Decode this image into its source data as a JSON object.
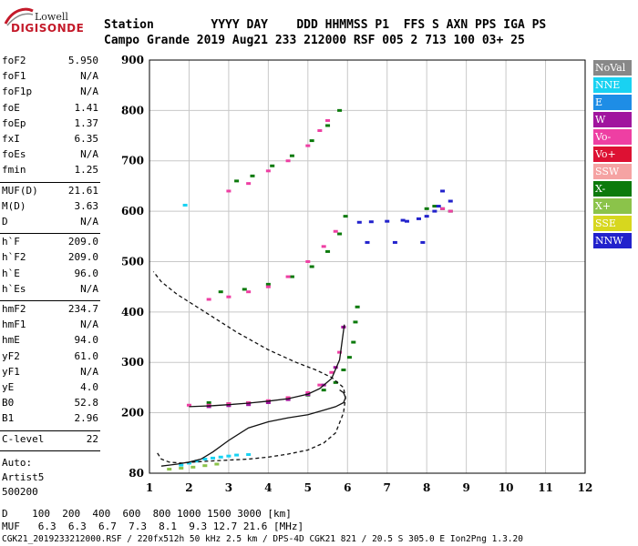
{
  "logo": {
    "top": "Lowell",
    "brand": "DIGISONDE"
  },
  "header": {
    "row1": "Station        YYYY DAY    DDD HHMMSS P1  FFS S AXN PPS IGA PS",
    "row2": "Campo Grande 2019 Aug21 233 212000 RSF 005 2 713 100 03+ 25"
  },
  "scaled": [
    {
      "k": "foF2",
      "v": "5.950"
    },
    {
      "k": "foF1",
      "v": "N/A"
    },
    {
      "k": "foF1p",
      "v": "N/A"
    },
    {
      "k": "foE",
      "v": "1.41"
    },
    {
      "k": "foEp",
      "v": "1.37"
    },
    {
      "k": "fxI",
      "v": "6.35"
    },
    {
      "k": "foEs",
      "v": "N/A"
    },
    {
      "k": "fmin",
      "v": "1.25"
    }
  ],
  "muf": [
    {
      "k": "MUF(D)",
      "v": "21.61"
    },
    {
      "k": "M(D)",
      "v": "3.63"
    },
    {
      "k": "D",
      "v": "N/A"
    }
  ],
  "heights": [
    {
      "k": "h`F",
      "v": "209.0"
    },
    {
      "k": "h`F2",
      "v": "209.0"
    },
    {
      "k": "h`E",
      "v": "96.0"
    },
    {
      "k": "h`Es",
      "v": "N/A"
    }
  ],
  "profile": [
    {
      "k": "hmF2",
      "v": "234.7"
    },
    {
      "k": "hmF1",
      "v": "N/A"
    },
    {
      "k": "hmE",
      "v": "94.0"
    },
    {
      "k": "yF2",
      "v": "61.0"
    },
    {
      "k": "yF1",
      "v": "N/A"
    },
    {
      "k": "yE",
      "v": "4.0"
    },
    {
      "k": "B0",
      "v": "52.8"
    },
    {
      "k": "B1",
      "v": "2.96"
    }
  ],
  "clevel": {
    "k": "C-level",
    "v": "22"
  },
  "auto": [
    "Auto:",
    "Artist5",
    "500200"
  ],
  "legend": [
    {
      "label": "NoVal",
      "color": "#888888"
    },
    {
      "label": "NNE",
      "color": "#19d2f2"
    },
    {
      "label": "E",
      "color": "#1e8de6"
    },
    {
      "label": "W",
      "color": "#a0159e"
    },
    {
      "label": "Vo-",
      "color": "#ee3fa3"
    },
    {
      "label": "Vo+",
      "color": "#dd1133"
    },
    {
      "label": "SSW",
      "color": "#f5a3a3"
    },
    {
      "label": "X-",
      "color": "#0c7a0c"
    },
    {
      "label": "X+",
      "color": "#8bc34a"
    },
    {
      "label": "SSE",
      "color": "#d7d71e"
    },
    {
      "label": "NNW",
      "color": "#2222cc"
    }
  ],
  "footer": {
    "d_row": "D    100  200  400  600  800 1000 1500 3000 [km]",
    "muf_row": "MUF   6.3  6.3  6.7  7.3  8.1  9.3 12.7 21.6 [MHz]",
    "file_row": "CGK21_2019233212000.RSF / 220fx512h 50 kHz 2.5 km / DPS-4D CGK21 821 / 20.5 S 305.0 E Ion2Png 1.3.20"
  },
  "chart_data": {
    "type": "scatter",
    "title": "",
    "xlabel": "",
    "ylabel": "",
    "xlim": [
      1,
      12
    ],
    "ylim": [
      80,
      900
    ],
    "x_ticks": [
      1,
      2,
      3,
      4,
      5,
      6,
      7,
      8,
      9,
      10,
      11,
      12
    ],
    "y_ticks": [
      80,
      200,
      300,
      400,
      500,
      600,
      700,
      800,
      900
    ],
    "grid": true,
    "series": [
      {
        "mode": "X-",
        "color": "#0c7a0c",
        "kind": "points",
        "x": [
          2.5,
          3.0,
          3.5,
          4.0,
          4.5,
          5.0,
          5.4,
          5.7,
          5.9,
          6.05,
          6.15,
          6.2,
          6.25,
          2.8,
          3.4,
          4.0,
          4.6,
          5.1,
          5.5,
          5.8,
          5.95,
          3.2,
          3.6,
          4.1,
          4.6,
          5.1,
          5.5,
          5.8,
          8.0,
          8.2,
          8.4,
          8.6
        ],
        "y": [
          220,
          218,
          220,
          223,
          228,
          235,
          245,
          260,
          285,
          310,
          340,
          380,
          410,
          440,
          445,
          455,
          470,
          490,
          520,
          555,
          590,
          660,
          670,
          690,
          710,
          740,
          770,
          800,
          605,
          610,
          605,
          600
        ]
      },
      {
        "mode": "Vo-",
        "color": "#ee3fa3",
        "kind": "points",
        "x": [
          2.0,
          2.5,
          3.0,
          3.5,
          4.0,
          4.5,
          5.0,
          5.3,
          5.6,
          5.8,
          5.9,
          2.5,
          3.0,
          3.5,
          4.0,
          4.5,
          5.0,
          5.4,
          5.7,
          3.0,
          3.5,
          4.0,
          4.5,
          5.0,
          5.3,
          5.5,
          8.4,
          8.6
        ],
        "y": [
          215,
          215,
          218,
          220,
          224,
          230,
          240,
          255,
          280,
          320,
          370,
          425,
          430,
          440,
          450,
          470,
          500,
          530,
          560,
          640,
          655,
          680,
          700,
          730,
          760,
          780,
          605,
          600
        ]
      },
      {
        "mode": "NNW",
        "color": "#2222cc",
        "kind": "points",
        "x": [
          6.3,
          6.6,
          7.0,
          7.4,
          7.8,
          8.0,
          8.2,
          8.4,
          8.6,
          7.5,
          8.3,
          6.5,
          7.2,
          7.9
        ],
        "y": [
          578,
          579,
          580,
          582,
          585,
          590,
          600,
          640,
          620,
          580,
          610,
          538,
          538,
          538
        ]
      },
      {
        "mode": "NNE",
        "color": "#19d2f2",
        "kind": "points",
        "x": [
          1.8,
          2.0,
          2.2,
          2.4,
          2.6,
          2.8,
          3.0,
          3.2,
          3.5,
          1.9
        ],
        "y": [
          96,
          100,
          104,
          108,
          110,
          112,
          114,
          116,
          117,
          612
        ]
      },
      {
        "mode": "W",
        "color": "#a0159e",
        "kind": "points",
        "x": [
          2.5,
          3.0,
          3.5,
          4.0,
          4.5,
          5.0,
          5.4,
          5.7,
          5.9
        ],
        "y": [
          212,
          214,
          216,
          220,
          226,
          236,
          255,
          290,
          370
        ]
      },
      {
        "mode": "X+",
        "color": "#8bc34a",
        "kind": "points",
        "x": [
          1.5,
          1.8,
          2.1,
          2.4,
          2.7
        ],
        "y": [
          88,
          90,
          92,
          95,
          98
        ]
      },
      {
        "mode": "O-trace",
        "color": "#111111",
        "kind": "line",
        "x": [
          2.0,
          2.3,
          2.6,
          3.0,
          3.5,
          4.0,
          4.5,
          5.0,
          5.3,
          5.6,
          5.8,
          5.92
        ],
        "y": [
          212,
          213,
          214,
          216,
          219,
          223,
          228,
          237,
          248,
          268,
          305,
          375
        ]
      },
      {
        "mode": "profile",
        "color": "#111111",
        "kind": "line",
        "x": [
          1.3,
          1.5,
          1.7,
          2.0,
          2.3,
          2.6,
          3.0,
          3.5,
          4.0,
          4.5,
          5.0,
          5.4,
          5.7,
          5.9,
          5.95,
          5.9,
          5.8
        ],
        "y": [
          94,
          96,
          98,
          102,
          108,
          122,
          145,
          170,
          182,
          190,
          196,
          205,
          212,
          220,
          230,
          240,
          245
        ]
      },
      {
        "mode": "profile-extrapolated",
        "color": "#111111",
        "kind": "dashed",
        "x": [
          1.2,
          1.3,
          1.5,
          1.8,
          2.1,
          2.5,
          3.0,
          3.5,
          4.0,
          4.5,
          5.0,
          5.4,
          5.7,
          5.9,
          5.95,
          5.9,
          5.6,
          5.2,
          4.7,
          4.0,
          3.2,
          2.4,
          1.7,
          1.3,
          1.1
        ],
        "y": [
          120,
          108,
          102,
          100,
          102,
          104,
          106,
          108,
          112,
          118,
          126,
          140,
          160,
          200,
          230,
          250,
          270,
          285,
          300,
          325,
          360,
          400,
          435,
          460,
          480
        ]
      }
    ]
  }
}
